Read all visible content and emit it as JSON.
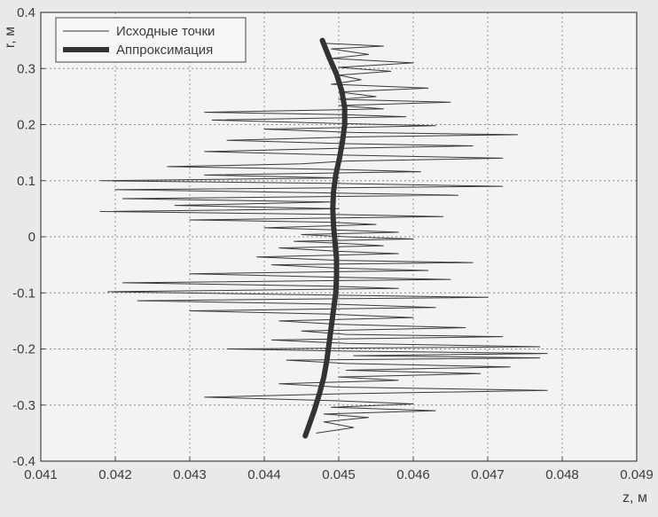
{
  "chart_data": {
    "type": "line",
    "xlabel": "z, м",
    "ylabel": "r, м",
    "xlim": [
      0.041,
      0.049
    ],
    "ylim": [
      -0.4,
      0.4
    ],
    "xticks": [
      "0.041",
      "0.042",
      "0.043",
      "0.044",
      "0.045",
      "0.046",
      "0.047",
      "0.048",
      "0.049"
    ],
    "yticks": [
      "0.4",
      "0.3",
      "0.2",
      "0.1",
      "0",
      "-0.1",
      "-0.2",
      "-0.3",
      "-0.4"
    ],
    "grid": true,
    "legend_position": "top-left",
    "series": [
      {
        "name": "Исходные точки",
        "style": "thin",
        "color": "#3a3a3a",
        "points": [
          [
            0.0448,
            0.345
          ],
          [
            0.0456,
            0.34
          ],
          [
            0.0449,
            0.335
          ],
          [
            0.0454,
            0.325
          ],
          [
            0.0449,
            0.318
          ],
          [
            0.046,
            0.31
          ],
          [
            0.045,
            0.302
          ],
          [
            0.0457,
            0.295
          ],
          [
            0.045,
            0.288
          ],
          [
            0.0453,
            0.28
          ],
          [
            0.0449,
            0.272
          ],
          [
            0.0462,
            0.265
          ],
          [
            0.045,
            0.258
          ],
          [
            0.0455,
            0.25
          ],
          [
            0.045,
            0.245
          ],
          [
            0.0465,
            0.24
          ],
          [
            0.045,
            0.234
          ],
          [
            0.0456,
            0.228
          ],
          [
            0.0432,
            0.222
          ],
          [
            0.045,
            0.218
          ],
          [
            0.0459,
            0.214
          ],
          [
            0.0433,
            0.208
          ],
          [
            0.045,
            0.202
          ],
          [
            0.0463,
            0.198
          ],
          [
            0.044,
            0.192
          ],
          [
            0.0452,
            0.186
          ],
          [
            0.0474,
            0.182
          ],
          [
            0.0452,
            0.178
          ],
          [
            0.0435,
            0.172
          ],
          [
            0.0451,
            0.166
          ],
          [
            0.0468,
            0.162
          ],
          [
            0.0451,
            0.158
          ],
          [
            0.0432,
            0.152
          ],
          [
            0.045,
            0.146
          ],
          [
            0.0472,
            0.14
          ],
          [
            0.0451,
            0.135
          ],
          [
            0.0445,
            0.13
          ],
          [
            0.0427,
            0.125
          ],
          [
            0.045,
            0.12
          ],
          [
            0.0461,
            0.116
          ],
          [
            0.0432,
            0.11
          ],
          [
            0.045,
            0.105
          ],
          [
            0.0418,
            0.1
          ],
          [
            0.045,
            0.095
          ],
          [
            0.0472,
            0.09
          ],
          [
            0.042,
            0.084
          ],
          [
            0.045,
            0.078
          ],
          [
            0.0466,
            0.074
          ],
          [
            0.0421,
            0.068
          ],
          [
            0.0449,
            0.062
          ],
          [
            0.0428,
            0.056
          ],
          [
            0.045,
            0.05
          ],
          [
            0.0418,
            0.045
          ],
          [
            0.0449,
            0.04
          ],
          [
            0.0464,
            0.036
          ],
          [
            0.043,
            0.03
          ],
          [
            0.0449,
            0.026
          ],
          [
            0.0455,
            0.022
          ],
          [
            0.044,
            0.016
          ],
          [
            0.045,
            0.012
          ],
          [
            0.0458,
            0.008
          ],
          [
            0.0445,
            0.004
          ],
          [
            0.0451,
            0.0
          ],
          [
            0.046,
            -0.004
          ],
          [
            0.0444,
            -0.008
          ],
          [
            0.0451,
            -0.012
          ],
          [
            0.0456,
            -0.016
          ],
          [
            0.0442,
            -0.02
          ],
          [
            0.045,
            -0.026
          ],
          [
            0.0458,
            -0.03
          ],
          [
            0.0439,
            -0.036
          ],
          [
            0.045,
            -0.042
          ],
          [
            0.0468,
            -0.046
          ],
          [
            0.0441,
            -0.05
          ],
          [
            0.045,
            -0.056
          ],
          [
            0.0462,
            -0.06
          ],
          [
            0.043,
            -0.066
          ],
          [
            0.0449,
            -0.072
          ],
          [
            0.0465,
            -0.076
          ],
          [
            0.0421,
            -0.082
          ],
          [
            0.0449,
            -0.088
          ],
          [
            0.0458,
            -0.092
          ],
          [
            0.0419,
            -0.098
          ],
          [
            0.0449,
            -0.104
          ],
          [
            0.047,
            -0.108
          ],
          [
            0.0423,
            -0.114
          ],
          [
            0.0449,
            -0.12
          ],
          [
            0.0463,
            -0.126
          ],
          [
            0.043,
            -0.132
          ],
          [
            0.0449,
            -0.138
          ],
          [
            0.046,
            -0.144
          ],
          [
            0.0442,
            -0.15
          ],
          [
            0.045,
            -0.156
          ],
          [
            0.0467,
            -0.162
          ],
          [
            0.0445,
            -0.168
          ],
          [
            0.0451,
            -0.174
          ],
          [
            0.0472,
            -0.178
          ],
          [
            0.0441,
            -0.184
          ],
          [
            0.0451,
            -0.19
          ],
          [
            0.0477,
            -0.196
          ],
          [
            0.0435,
            -0.2
          ],
          [
            0.0452,
            -0.204
          ],
          [
            0.0478,
            -0.208
          ],
          [
            0.0452,
            -0.212
          ],
          [
            0.0477,
            -0.216
          ],
          [
            0.0443,
            -0.22
          ],
          [
            0.0451,
            -0.226
          ],
          [
            0.0473,
            -0.232
          ],
          [
            0.0451,
            -0.238
          ],
          [
            0.0469,
            -0.244
          ],
          [
            0.045,
            -0.25
          ],
          [
            0.0458,
            -0.256
          ],
          [
            0.0442,
            -0.262
          ],
          [
            0.045,
            -0.268
          ],
          [
            0.0478,
            -0.274
          ],
          [
            0.045,
            -0.28
          ],
          [
            0.0432,
            -0.286
          ],
          [
            0.0449,
            -0.292
          ],
          [
            0.046,
            -0.298
          ],
          [
            0.0449,
            -0.304
          ],
          [
            0.0463,
            -0.31
          ],
          [
            0.0448,
            -0.316
          ],
          [
            0.0454,
            -0.322
          ],
          [
            0.0448,
            -0.33
          ],
          [
            0.0452,
            -0.34
          ],
          [
            0.0447,
            -0.35
          ]
        ]
      },
      {
        "name": "Аппроксимация",
        "style": "thick",
        "color": "#333333",
        "points": [
          [
            0.04478,
            0.35
          ],
          [
            0.04487,
            0.32
          ],
          [
            0.04497,
            0.29
          ],
          [
            0.04504,
            0.26
          ],
          [
            0.04508,
            0.23
          ],
          [
            0.04508,
            0.2
          ],
          [
            0.04505,
            0.17
          ],
          [
            0.04501,
            0.14
          ],
          [
            0.04496,
            0.11
          ],
          [
            0.04493,
            0.08
          ],
          [
            0.04492,
            0.05
          ],
          [
            0.04493,
            0.02
          ],
          [
            0.04495,
            -0.01
          ],
          [
            0.04497,
            -0.04
          ],
          [
            0.04497,
            -0.07
          ],
          [
            0.04496,
            -0.1
          ],
          [
            0.04493,
            -0.13
          ],
          [
            0.0449,
            -0.16
          ],
          [
            0.04487,
            -0.19
          ],
          [
            0.04484,
            -0.22
          ],
          [
            0.0448,
            -0.25
          ],
          [
            0.04474,
            -0.28
          ],
          [
            0.04467,
            -0.31
          ],
          [
            0.04459,
            -0.34
          ],
          [
            0.04455,
            -0.355
          ]
        ]
      }
    ]
  }
}
